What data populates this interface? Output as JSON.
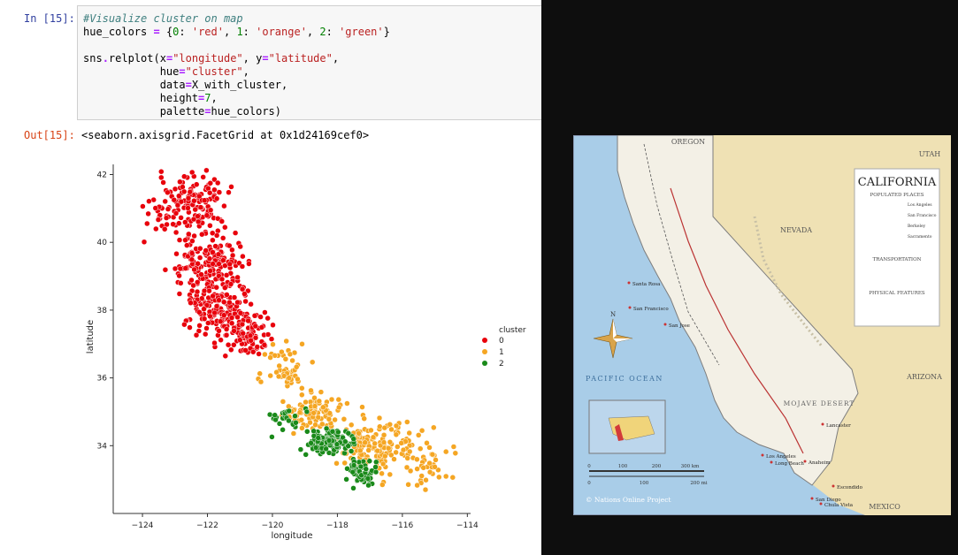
{
  "notebook": {
    "in_prompt": "In [15]:",
    "out_prompt": "Out[15]:",
    "code_lines": [
      [
        {
          "t": "#Visualize cluster on map",
          "c": "c-cmt"
        }
      ],
      [
        {
          "t": "hue_colors "
        },
        {
          "t": "=",
          "c": "c-op"
        },
        {
          "t": " {"
        },
        {
          "t": "0",
          "c": "c-num"
        },
        {
          "t": ": "
        },
        {
          "t": "'red'",
          "c": "c-str"
        },
        {
          "t": ", "
        },
        {
          "t": "1",
          "c": "c-num"
        },
        {
          "t": ": "
        },
        {
          "t": "'orange'",
          "c": "c-str"
        },
        {
          "t": ", "
        },
        {
          "t": "2",
          "c": "c-num"
        },
        {
          "t": ": "
        },
        {
          "t": "'green'",
          "c": "c-str"
        },
        {
          "t": "}"
        }
      ],
      [],
      [
        {
          "t": "sns"
        },
        {
          "t": ".",
          "c": "c-op"
        },
        {
          "t": "relplot(x"
        },
        {
          "t": "=",
          "c": "c-op"
        },
        {
          "t": "\"longitude\"",
          "c": "c-str"
        },
        {
          "t": ", y"
        },
        {
          "t": "=",
          "c": "c-op"
        },
        {
          "t": "\"latitude\"",
          "c": "c-str"
        },
        {
          "t": ","
        }
      ],
      [
        {
          "t": "            hue"
        },
        {
          "t": "=",
          "c": "c-op"
        },
        {
          "t": "\"cluster\"",
          "c": "c-str"
        },
        {
          "t": ","
        }
      ],
      [
        {
          "t": "            data"
        },
        {
          "t": "=",
          "c": "c-op"
        },
        {
          "t": "X_with_cluster,"
        }
      ],
      [
        {
          "t": "            height"
        },
        {
          "t": "=",
          "c": "c-op"
        },
        {
          "t": "7",
          "c": "c-num"
        },
        {
          "t": ","
        }
      ],
      [
        {
          "t": "            palette"
        },
        {
          "t": "=",
          "c": "c-op"
        },
        {
          "t": "hue_colors)"
        }
      ]
    ],
    "output_text": "<seaborn.axisgrid.FacetGrid at 0x1d24169cef0>"
  },
  "chart_data": {
    "type": "scatter",
    "xlabel": "longitude",
    "ylabel": "latitude",
    "xlim": [
      -124.9,
      -113.9
    ],
    "ylim": [
      32.0,
      42.3
    ],
    "xticks": [
      -124,
      -122,
      -120,
      -118,
      -116,
      -114
    ],
    "yticks": [
      34,
      36,
      38,
      40,
      42
    ],
    "legend": {
      "title": "cluster",
      "placement": "right"
    },
    "series": [
      {
        "name": "0",
        "color": "#e8000b",
        "regions": [
          {
            "center": [
              -122.6,
              41.1
            ],
            "spread": [
              0.9,
              0.7
            ],
            "count": 150
          },
          {
            "center": [
              -122.0,
              39.3
            ],
            "spread": [
              0.9,
              0.9
            ],
            "count": 180
          },
          {
            "center": [
              -121.6,
              38.0
            ],
            "spread": [
              0.8,
              0.6
            ],
            "count": 140
          },
          {
            "center": [
              -120.8,
              37.3
            ],
            "spread": [
              0.7,
              0.5
            ],
            "count": 90
          }
        ]
      },
      {
        "name": "1",
        "color": "#f5a623",
        "regions": [
          {
            "center": [
              -119.7,
              36.3
            ],
            "spread": [
              0.6,
              0.5
            ],
            "count": 50
          },
          {
            "center": [
              -118.7,
              35.0
            ],
            "spread": [
              0.8,
              0.5
            ],
            "count": 90
          },
          {
            "center": [
              -117.0,
              34.0
            ],
            "spread": [
              0.8,
              0.7
            ],
            "count": 130
          },
          {
            "center": [
              -115.5,
              33.6
            ],
            "spread": [
              0.8,
              0.8
            ],
            "count": 60
          }
        ]
      },
      {
        "name": "2",
        "color": "#1a8a1a",
        "regions": [
          {
            "center": [
              -118.2,
              34.1
            ],
            "spread": [
              0.6,
              0.3
            ],
            "count": 120
          },
          {
            "center": [
              -117.2,
              33.2
            ],
            "spread": [
              0.4,
              0.3
            ],
            "count": 60
          },
          {
            "center": [
              -119.6,
              34.8
            ],
            "spread": [
              0.5,
              0.4
            ],
            "count": 25
          }
        ]
      }
    ]
  },
  "map": {
    "title": "CALIFORNIA",
    "subtitle": "POPULATED PLACES",
    "transport_heading": "TRANSPORTATION",
    "physical_heading": "PHYSICAL FEATURES",
    "ocean_label": "PACIFIC OCEAN",
    "states": [
      "OREGON",
      "NEVADA",
      "ARIZONA",
      "UTAH",
      "MEXICO"
    ],
    "desert_label": "MOJAVE DESERT",
    "cities": [
      "San Francisco",
      "Santa Rosa",
      "San Jose",
      "Los Angeles",
      "Long Beach",
      "San Diego",
      "Lancaster",
      "Anaheim",
      "Chula Vista",
      "Escondido"
    ],
    "legend_items": [
      "Los Angeles",
      "San Francisco",
      "Berkeley",
      "Sacramento"
    ],
    "scale_km": [
      "0",
      "100",
      "200",
      "300 km"
    ],
    "scale_mi": [
      "0",
      "100",
      "200 mi"
    ],
    "north_label": "N",
    "credit": "© Nations Online Project"
  }
}
